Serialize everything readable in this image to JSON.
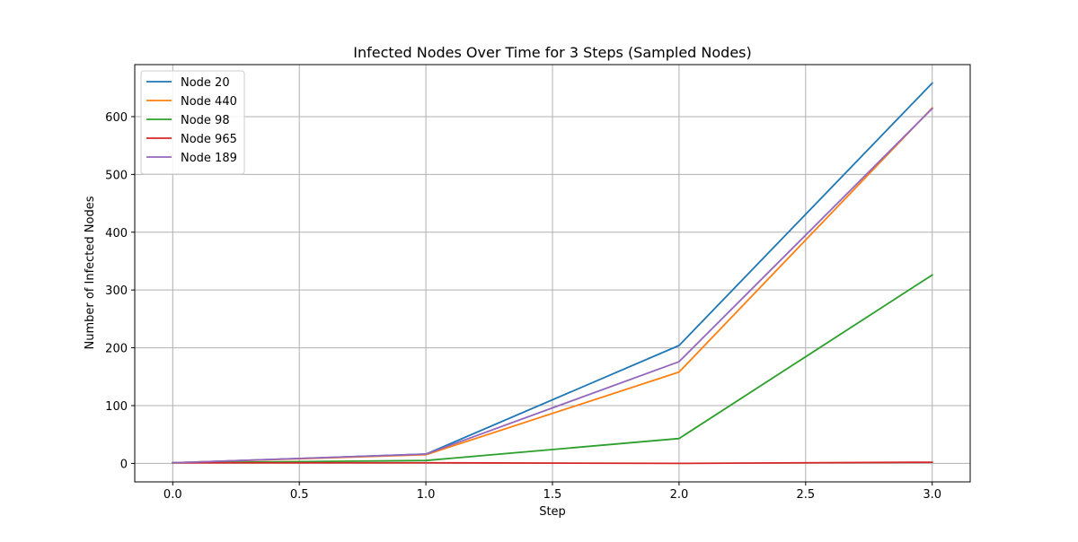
{
  "chart_data": {
    "type": "line",
    "title": "Infected Nodes Over Time for 3 Steps (Sampled Nodes)",
    "xlabel": "Step",
    "ylabel": "Number of Infected Nodes",
    "xlim": [
      -0.15,
      3.15
    ],
    "ylim": [
      -32,
      690
    ],
    "xticks": [
      0.0,
      0.5,
      1.0,
      1.5,
      2.0,
      2.5,
      3.0
    ],
    "xtick_labels": [
      "0.0",
      "0.5",
      "1.0",
      "1.5",
      "2.0",
      "2.5",
      "3.0"
    ],
    "yticks": [
      0,
      100,
      200,
      300,
      400,
      500,
      600
    ],
    "ytick_labels": [
      "0",
      "100",
      "200",
      "300",
      "400",
      "500",
      "600"
    ],
    "grid": true,
    "legend_position": "top-left",
    "x": [
      0,
      1,
      2,
      3
    ],
    "series": [
      {
        "name": "Node 20",
        "color": "#1f77b4",
        "values": [
          1,
          16,
          204,
          658
        ]
      },
      {
        "name": "Node 440",
        "color": "#ff7f0e",
        "values": [
          1,
          15,
          158,
          615
        ]
      },
      {
        "name": "Node 98",
        "color": "#2ca02c",
        "values": [
          1,
          5,
          43,
          326
        ]
      },
      {
        "name": "Node 965",
        "color": "#d62728",
        "values": [
          1,
          1,
          0,
          2
        ]
      },
      {
        "name": "Node 189",
        "color": "#9467bd",
        "values": [
          1,
          16,
          176,
          614
        ]
      }
    ]
  }
}
